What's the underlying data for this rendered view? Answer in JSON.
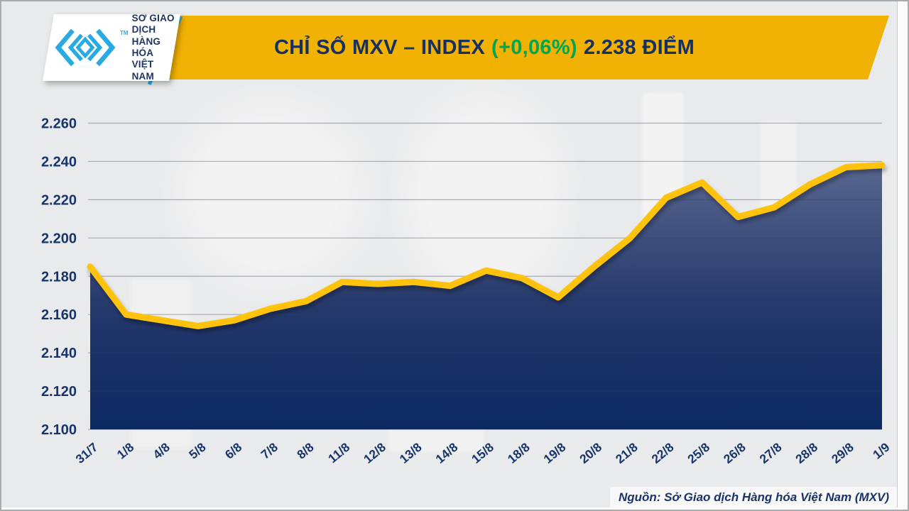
{
  "header": {
    "logo": {
      "glyph": "mxv-chevron-logo",
      "tm": "TM",
      "lines": [
        "SỞ GIAO DỊCH",
        "HÀNG HÓA",
        "VIỆT NAM"
      ]
    },
    "title": {
      "part1": "CHỈ SỐ MXV – INDEX",
      "change": "(+0,06%)",
      "part2": "2.238 ĐIỂM"
    },
    "colors": {
      "banner_yellow": "#F2B203",
      "title_navy": "#16305F",
      "change_green": "#00A651",
      "logo_cyan": "#29ABE2"
    }
  },
  "footer": {
    "source": "Nguồn: Sở Giao dịch Hàng hóa Việt Nam (MXV)"
  },
  "chart_data": {
    "type": "area",
    "title": "CHỈ SỐ MXV – INDEX (+0,06%) 2.238 ĐIỂM",
    "xlabel": "",
    "ylabel": "",
    "categories": [
      "31/7",
      "1/8",
      "4/8",
      "5/8",
      "6/8",
      "7/8",
      "8/8",
      "11/8",
      "12/8",
      "13/8",
      "14/8",
      "15/8",
      "18/8",
      "19/8",
      "20/8",
      "21/8",
      "22/8",
      "25/8",
      "26/8",
      "27/8",
      "28/8",
      "29/8",
      "1/9"
    ],
    "values": [
      2185,
      2160,
      2157,
      2154,
      2157,
      2163,
      2167,
      2177,
      2176,
      2177,
      2175,
      2183,
      2179,
      2169,
      2185,
      2200,
      2221,
      2229,
      2211,
      2216,
      2228,
      2237,
      2238
    ],
    "latest_value_label": "2.238",
    "change_label": "+0,06%",
    "ylim": [
      2100,
      2260
    ],
    "ytick_step": 20,
    "ytick_labels": [
      "2.100",
      "2.120",
      "2.140",
      "2.160",
      "2.180",
      "2.200",
      "2.220",
      "2.240",
      "2.260"
    ],
    "grid": true,
    "legend": false,
    "line_color": "#FFC20E",
    "area_top_color": "#5A6890",
    "area_mid_color": "#24386B",
    "area_bottom_color": "#0B2961",
    "gridline_color": "#33415f",
    "tick_label_color": "#17356B"
  }
}
